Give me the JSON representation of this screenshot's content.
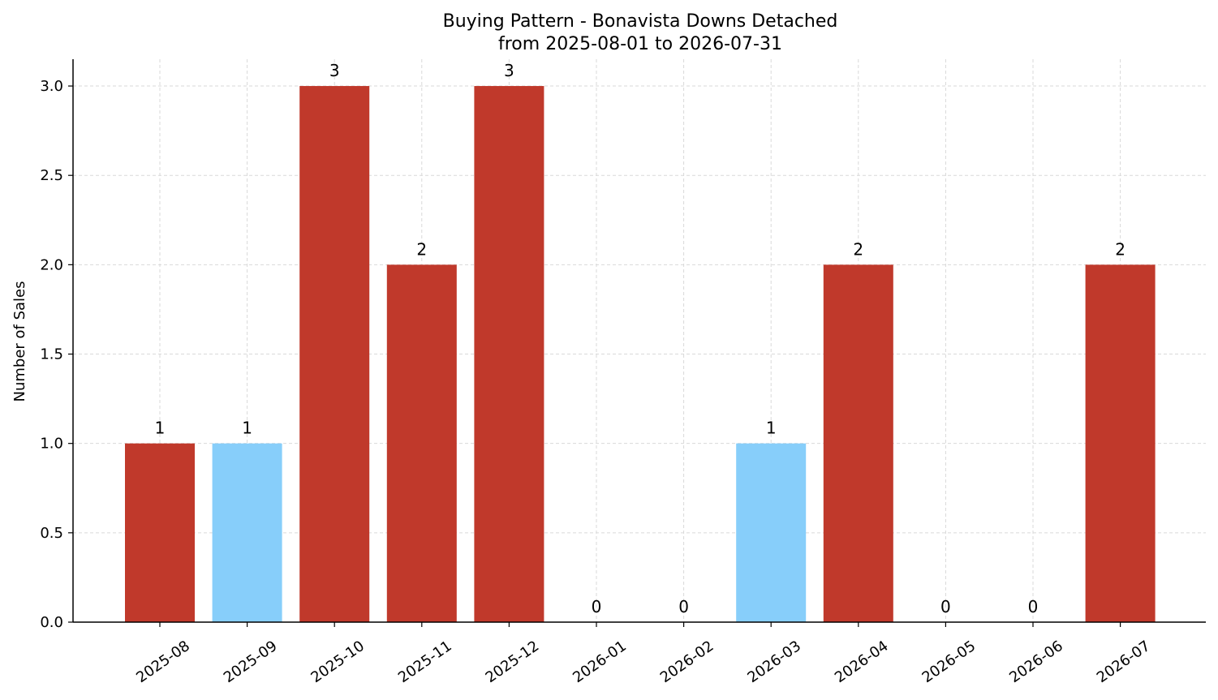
{
  "chart_data": {
    "type": "bar",
    "title": "Buying Pattern - Bonavista Downs Detached",
    "subtitle": "from 2025-08-01 to 2026-07-31",
    "xlabel": "",
    "ylabel": "Number of Sales",
    "categories": [
      "2025-08",
      "2025-09",
      "2025-10",
      "2025-11",
      "2025-12",
      "2026-01",
      "2026-02",
      "2026-03",
      "2026-04",
      "2026-05",
      "2026-06",
      "2026-07"
    ],
    "values": [
      1,
      1,
      3,
      2,
      3,
      0,
      0,
      1,
      2,
      0,
      0,
      2
    ],
    "data_labels": [
      "1",
      "1",
      "3",
      "2",
      "3",
      "0",
      "0",
      "1",
      "2",
      "0",
      "0",
      "2"
    ],
    "bar_colors": [
      "#c0392b",
      "#87cefa",
      "#c0392b",
      "#c0392b",
      "#c0392b",
      "#c0392b",
      "#c0392b",
      "#87cefa",
      "#c0392b",
      "#c0392b",
      "#c0392b",
      "#c0392b"
    ],
    "yticks": [
      0.0,
      0.5,
      1.0,
      1.5,
      2.0,
      2.5,
      3.0
    ],
    "ytick_labels": [
      "0.0",
      "0.5",
      "1.0",
      "1.5",
      "2.0",
      "2.5",
      "3.0"
    ],
    "ylim": [
      0,
      3.15
    ],
    "grid": true,
    "grid_style": "dashed"
  },
  "colors": {
    "accent_red": "#c0392b",
    "accent_blue": "#87cefa",
    "grid": "#d9d9d9",
    "axis": "#000000"
  }
}
